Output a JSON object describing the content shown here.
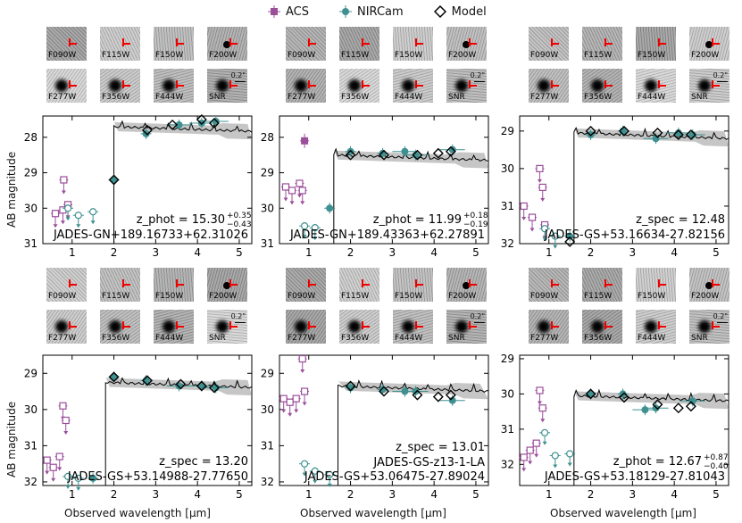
{
  "legend": [
    {
      "label": "ACS",
      "color": "#9b4f9b",
      "marker": "square"
    },
    {
      "label": "NIRCam",
      "color": "#3f9090",
      "marker": "circle"
    },
    {
      "label": "Model",
      "color": "#000000",
      "marker": "diamond"
    }
  ],
  "thumb_labels": [
    "F090W",
    "F115W",
    "F150W",
    "F200W",
    "F277W",
    "F356W",
    "F444W",
    "SNR"
  ],
  "scale_label": "0.2\"",
  "ylabel": "AB magnitude",
  "xlabel": "Observed wavelength  [μm]",
  "colors": {
    "acs": "#9b4f9b",
    "nircam": "#3f9090",
    "model": "#000000",
    "band": "#b8b8b8"
  },
  "chart_data": [
    {
      "type": "scatter",
      "panel": "top-left",
      "ylim": [
        31,
        27.4
      ],
      "xlim": [
        0.3,
        5.3
      ],
      "yticks": [
        28,
        29,
        30,
        31
      ],
      "xticks": [
        1,
        2,
        3,
        4,
        5
      ],
      "redshift_label": "z_phot = 15.30",
      "z_err_up": "+0.35",
      "z_err_down": "−0.43",
      "name": "JADES-GN+189.16733+62.31026",
      "break": 2.0,
      "model_level": 27.7,
      "acs": [
        {
          "x": 0.6,
          "y": 30.15,
          "upper": true
        },
        {
          "x": 0.8,
          "y": 29.2,
          "upper": true
        },
        {
          "x": 0.78,
          "y": 30.05,
          "upper": true
        },
        {
          "x": 0.9,
          "y": 29.9,
          "upper": true
        }
      ],
      "nircam": [
        {
          "x": 0.9,
          "y": 30.0,
          "upper": true
        },
        {
          "x": 1.15,
          "y": 30.2,
          "upper": true
        },
        {
          "x": 1.5,
          "y": 30.1,
          "upper": true
        },
        {
          "x": 2.0,
          "y": 29.2,
          "upper": false
        },
        {
          "x": 2.77,
          "y": 27.9,
          "upper": false
        },
        {
          "x": 3.56,
          "y": 27.65,
          "upper": false
        },
        {
          "x": 4.44,
          "y": 27.55,
          "upper": false
        },
        {
          "x": 4.1,
          "y": 27.6,
          "upper": false
        }
      ],
      "model": [
        {
          "x": 2.0,
          "y": 29.2
        },
        {
          "x": 2.8,
          "y": 27.8
        },
        {
          "x": 3.4,
          "y": 27.65
        },
        {
          "x": 4.1,
          "y": 27.5
        },
        {
          "x": 4.4,
          "y": 27.6
        }
      ]
    },
    {
      "type": "scatter",
      "panel": "top-middle",
      "ylim": [
        31,
        27.4
      ],
      "xlim": [
        0.3,
        5.3
      ],
      "yticks": [
        28,
        29,
        30,
        31
      ],
      "xticks": [
        1,
        2,
        3,
        4,
        5
      ],
      "redshift_label": "z_phot = 11.99",
      "z_err_up": "+0.18",
      "z_err_down": "−0.19",
      "name": "JADES-GN+189.43363+62.27891",
      "break": 1.6,
      "model_level": 28.5,
      "acs": [
        {
          "x": 0.45,
          "y": 29.4,
          "upper": true
        },
        {
          "x": 0.6,
          "y": 29.5,
          "upper": true
        },
        {
          "x": 0.78,
          "y": 29.3,
          "upper": true
        },
        {
          "x": 0.85,
          "y": 29.5,
          "upper": true
        },
        {
          "x": 0.9,
          "y": 28.1,
          "upper": false
        }
      ],
      "nircam": [
        {
          "x": 0.9,
          "y": 30.5,
          "upper": true
        },
        {
          "x": 1.15,
          "y": 30.55,
          "upper": true
        },
        {
          "x": 1.5,
          "y": 30.0,
          "upper": false
        },
        {
          "x": 2.0,
          "y": 28.4,
          "upper": false
        },
        {
          "x": 2.77,
          "y": 28.45,
          "upper": false
        },
        {
          "x": 3.56,
          "y": 28.5,
          "upper": false
        },
        {
          "x": 4.44,
          "y": 28.35,
          "upper": false
        },
        {
          "x": 3.3,
          "y": 28.4,
          "upper": false
        }
      ],
      "model": [
        {
          "x": 2.0,
          "y": 28.5
        },
        {
          "x": 2.8,
          "y": 28.5
        },
        {
          "x": 3.6,
          "y": 28.5
        },
        {
          "x": 4.1,
          "y": 28.45
        },
        {
          "x": 4.4,
          "y": 28.4
        }
      ]
    },
    {
      "type": "scatter",
      "panel": "top-right",
      "ylim": [
        32,
        28.6
      ],
      "xlim": [
        0.3,
        5.3
      ],
      "yticks": [
        29,
        30,
        31,
        32
      ],
      "xticks": [
        1,
        2,
        3,
        4,
        5
      ],
      "redshift_label": "z_spec = 12.48",
      "z_err_up": "",
      "z_err_down": "",
      "name": "JADES-GS+53.16634-27.82156",
      "break": 1.6,
      "model_level": 29.05,
      "acs": [
        {
          "x": 0.4,
          "y": 31.0,
          "upper": true
        },
        {
          "x": 0.6,
          "y": 31.3,
          "upper": true
        },
        {
          "x": 0.78,
          "y": 30.0,
          "upper": true
        },
        {
          "x": 0.85,
          "y": 30.5,
          "upper": true
        },
        {
          "x": 0.9,
          "y": 31.5,
          "upper": true
        }
      ],
      "nircam": [
        {
          "x": 0.9,
          "y": 31.6,
          "upper": true
        },
        {
          "x": 1.15,
          "y": 31.8,
          "upper": true
        },
        {
          "x": 1.5,
          "y": 31.8,
          "upper": false
        },
        {
          "x": 2.0,
          "y": 29.1,
          "upper": false
        },
        {
          "x": 2.77,
          "y": 29.0,
          "upper": false
        },
        {
          "x": 3.56,
          "y": 29.2,
          "upper": false
        },
        {
          "x": 4.44,
          "y": 29.1,
          "upper": false
        },
        {
          "x": 4.1,
          "y": 29.05,
          "upper": false
        }
      ],
      "model": [
        {
          "x": 1.5,
          "y": 31.95
        },
        {
          "x": 2.0,
          "y": 29.0
        },
        {
          "x": 2.8,
          "y": 29.0
        },
        {
          "x": 3.6,
          "y": 29.05
        },
        {
          "x": 4.1,
          "y": 29.1
        },
        {
          "x": 4.4,
          "y": 29.1
        }
      ]
    },
    {
      "type": "scatter",
      "panel": "bottom-left",
      "ylim": [
        32.1,
        28.5
      ],
      "xlim": [
        0.3,
        5.3
      ],
      "yticks": [
        29,
        30,
        31,
        32
      ],
      "xticks": [
        1,
        2,
        3,
        4,
        5
      ],
      "redshift_label": "z_spec = 13.20",
      "z_err_up": "",
      "z_err_down": "",
      "name": "JADES-GS+53.14988-27.77650",
      "break": 1.8,
      "model_level": 29.25,
      "acs": [
        {
          "x": 0.4,
          "y": 31.4,
          "upper": true
        },
        {
          "x": 0.55,
          "y": 31.6,
          "upper": true
        },
        {
          "x": 0.7,
          "y": 31.3,
          "upper": true
        },
        {
          "x": 0.78,
          "y": 29.9,
          "upper": true
        },
        {
          "x": 0.85,
          "y": 30.3,
          "upper": true
        }
      ],
      "nircam": [
        {
          "x": 0.9,
          "y": 31.85,
          "upper": true
        },
        {
          "x": 1.15,
          "y": 31.9,
          "upper": true
        },
        {
          "x": 1.5,
          "y": 31.9,
          "upper": false
        },
        {
          "x": 2.0,
          "y": 29.1,
          "upper": false
        },
        {
          "x": 2.77,
          "y": 29.2,
          "upper": false
        },
        {
          "x": 3.56,
          "y": 29.35,
          "upper": false
        },
        {
          "x": 4.44,
          "y": 29.4,
          "upper": false
        },
        {
          "x": 4.1,
          "y": 29.35,
          "upper": false
        }
      ],
      "model": [
        {
          "x": 2.0,
          "y": 29.1
        },
        {
          "x": 2.8,
          "y": 29.2
        },
        {
          "x": 3.6,
          "y": 29.3
        },
        {
          "x": 4.1,
          "y": 29.35
        },
        {
          "x": 4.4,
          "y": 29.4
        }
      ]
    },
    {
      "type": "scatter",
      "panel": "bottom-middle",
      "ylim": [
        32.1,
        28.5
      ],
      "xlim": [
        0.3,
        5.3
      ],
      "yticks": [
        29,
        30,
        31,
        32
      ],
      "xticks": [
        1,
        2,
        3,
        4,
        5
      ],
      "redshift_label": "z_spec = 13.01",
      "z_err_up": "",
      "z_err_down": "",
      "name": "JADES-GS-z13-1-LA",
      "name2": "JADES-GS+53.06475-27.89024",
      "break": 1.7,
      "model_level": 29.35,
      "acs": [
        {
          "x": 0.4,
          "y": 29.7,
          "upper": true
        },
        {
          "x": 0.55,
          "y": 29.8,
          "upper": true
        },
        {
          "x": 0.7,
          "y": 29.7,
          "upper": true
        },
        {
          "x": 0.85,
          "y": 28.6,
          "upper": true
        },
        {
          "x": 0.9,
          "y": 29.5,
          "upper": true
        }
      ],
      "nircam": [
        {
          "x": 0.9,
          "y": 31.5,
          "upper": true
        },
        {
          "x": 1.15,
          "y": 31.7,
          "upper": true
        },
        {
          "x": 1.5,
          "y": 31.8,
          "upper": true
        },
        {
          "x": 2.0,
          "y": 29.4,
          "upper": false
        },
        {
          "x": 2.77,
          "y": 29.45,
          "upper": false
        },
        {
          "x": 3.56,
          "y": 29.5,
          "upper": false
        },
        {
          "x": 4.44,
          "y": 29.75,
          "upper": false
        },
        {
          "x": 3.3,
          "y": 29.5,
          "upper": false
        }
      ],
      "model": [
        {
          "x": 2.0,
          "y": 29.35
        },
        {
          "x": 2.8,
          "y": 29.5
        },
        {
          "x": 3.6,
          "y": 29.6
        },
        {
          "x": 4.1,
          "y": 29.65
        },
        {
          "x": 4.4,
          "y": 29.6
        }
      ]
    },
    {
      "type": "scatter",
      "panel": "bottom-right",
      "ylim": [
        32.6,
        28.9
      ],
      "xlim": [
        0.3,
        5.3
      ],
      "yticks": [
        29,
        30,
        31,
        32
      ],
      "xticks": [
        1,
        2,
        3,
        4,
        5
      ],
      "redshift_label": "z_phot = 12.67",
      "z_err_up": "+0.87",
      "z_err_down": "−0.40",
      "name": "JADES-GS+53.18129-27.81043",
      "break": 1.6,
      "model_level": 30.05,
      "acs": [
        {
          "x": 0.4,
          "y": 31.8,
          "upper": true
        },
        {
          "x": 0.55,
          "y": 31.6,
          "upper": true
        },
        {
          "x": 0.7,
          "y": 31.4,
          "upper": true
        },
        {
          "x": 0.78,
          "y": 29.9,
          "upper": true
        },
        {
          "x": 0.85,
          "y": 30.4,
          "upper": true
        }
      ],
      "nircam": [
        {
          "x": 0.9,
          "y": 31.1,
          "upper": true
        },
        {
          "x": 1.15,
          "y": 31.75,
          "upper": true
        },
        {
          "x": 1.5,
          "y": 31.7,
          "upper": true
        },
        {
          "x": 2.0,
          "y": 30.0,
          "upper": false
        },
        {
          "x": 2.77,
          "y": 30.0,
          "upper": false
        },
        {
          "x": 3.56,
          "y": 30.4,
          "upper": false
        },
        {
          "x": 4.44,
          "y": 30.2,
          "upper": false
        },
        {
          "x": 3.3,
          "y": 30.45,
          "upper": false
        }
      ],
      "model": [
        {
          "x": 2.0,
          "y": 30.0
        },
        {
          "x": 2.8,
          "y": 30.1
        },
        {
          "x": 3.6,
          "y": 30.3
        },
        {
          "x": 4.1,
          "y": 30.4
        },
        {
          "x": 4.4,
          "y": 30.35
        }
      ]
    }
  ]
}
